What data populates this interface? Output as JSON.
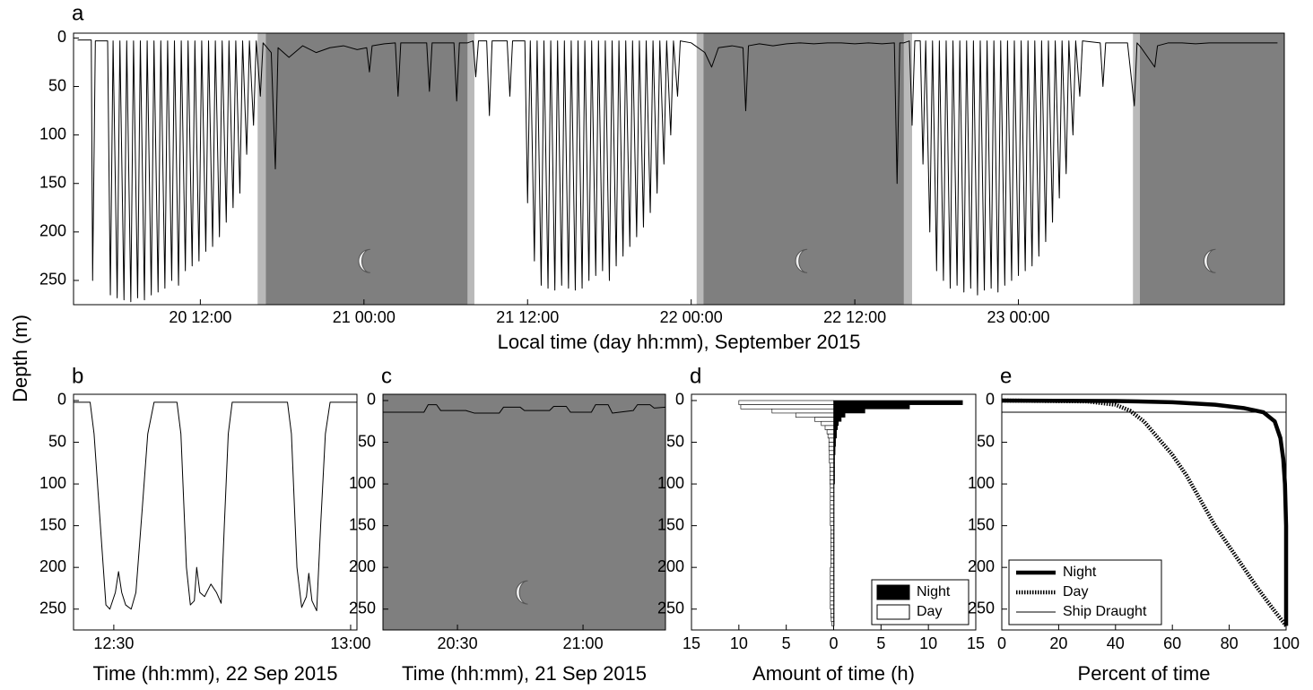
{
  "chart_data": [
    {
      "type": "line",
      "label": "a",
      "xlabel": "Local time (day hh:mm), September 2015",
      "ylabel": "Depth (m)",
      "color": "#000000",
      "xlim": [
        2.7,
        91.5
      ],
      "xticks": [
        {
          "value": 12,
          "label": "20 12:00"
        },
        {
          "value": 24,
          "label": "21 00:00"
        },
        {
          "value": 36,
          "label": "21 12:00"
        },
        {
          "value": 48,
          "label": "22 00:00"
        },
        {
          "value": 60,
          "label": "22 12:00"
        },
        {
          "value": 72,
          "label": "23 00:00"
        }
      ],
      "ylim": [
        -5,
        275
      ],
      "y_inverted": true,
      "yticks": [
        0,
        50,
        100,
        150,
        200,
        250
      ],
      "night_periods": [
        [
          16.8,
          31.6
        ],
        [
          48.9,
          63.6
        ],
        [
          80.9,
          91.5
        ]
      ],
      "twilight_periods": [
        [
          16.2,
          16.8
        ],
        [
          31.6,
          32.1
        ],
        [
          48.4,
          48.9
        ],
        [
          63.6,
          64.2
        ],
        [
          80.4,
          80.9
        ]
      ],
      "x": [
        3.0,
        4.0,
        4.1,
        4.3,
        5.2,
        5.4,
        5.6,
        5.9,
        6.1,
        6.4,
        6.6,
        6.9,
        7.1,
        7.4,
        7.6,
        7.9,
        8.1,
        8.4,
        8.6,
        8.9,
        9.1,
        9.4,
        9.6,
        9.9,
        10.1,
        10.4,
        10.6,
        10.9,
        11.1,
        11.4,
        11.6,
        11.9,
        12.1,
        12.4,
        12.6,
        12.9,
        13.1,
        13.4,
        13.6,
        13.9,
        14.1,
        14.4,
        14.6,
        14.9,
        15.1,
        15.4,
        15.6,
        15.9,
        16.1,
        16.4,
        16.6,
        17.2,
        17.5,
        17.7,
        18.5,
        19.5,
        20.5,
        21.5,
        22.5,
        23.5,
        24.2,
        24.4,
        24.6,
        25.5,
        26.3,
        26.5,
        26.7,
        27.5,
        28.6,
        28.8,
        29.0,
        30.0,
        30.6,
        30.8,
        31.0,
        31.6,
        32.0,
        32.2,
        32.4,
        33.0,
        33.2,
        33.4,
        34.5,
        34.7,
        34.9,
        35.8,
        36.0,
        36.2,
        36.5,
        36.7,
        37.0,
        37.2,
        37.5,
        37.7,
        38.0,
        38.2,
        38.5,
        38.7,
        39.0,
        39.2,
        39.5,
        39.7,
        40.0,
        40.2,
        40.5,
        40.7,
        41.0,
        41.2,
        41.5,
        41.7,
        42.0,
        42.2,
        42.5,
        42.7,
        43.0,
        43.2,
        43.5,
        43.7,
        44.0,
        44.2,
        44.5,
        44.7,
        45.0,
        45.2,
        45.5,
        45.7,
        46.0,
        46.2,
        46.5,
        46.7,
        47.0,
        47.2,
        48.0,
        49.0,
        49.5,
        50.0,
        51.0,
        51.8,
        52.0,
        52.2,
        53.0,
        54.0,
        55.0,
        56.0,
        57.0,
        58.0,
        59.0,
        60.0,
        61.0,
        62.0,
        62.9,
        63.1,
        63.3,
        63.6,
        64.0,
        64.2,
        64.4,
        64.8,
        65.0,
        65.2,
        65.5,
        65.7,
        66.0,
        66.2,
        66.5,
        66.7,
        67.0,
        67.2,
        67.5,
        67.7,
        68.0,
        68.2,
        68.5,
        68.7,
        69.0,
        69.2,
        69.5,
        69.7,
        70.0,
        70.2,
        70.5,
        70.7,
        71.0,
        71.2,
        71.5,
        71.7,
        72.0,
        72.2,
        72.5,
        72.7,
        73.0,
        73.2,
        73.5,
        73.7,
        74.0,
        74.2,
        74.5,
        74.7,
        75.0,
        75.2,
        75.5,
        75.7,
        76.0,
        76.2,
        76.5,
        76.7,
        78.0,
        78.2,
        78.4,
        80.0,
        80.5,
        80.7,
        81,
        82,
        82.2,
        83,
        84,
        85,
        86,
        87,
        88,
        89,
        90,
        91
      ],
      "values": [
        2,
        2,
        250,
        3,
        3,
        265,
        3,
        268,
        3,
        270,
        3,
        272,
        3,
        268,
        3,
        270,
        3,
        265,
        3,
        262,
        3,
        258,
        3,
        250,
        3,
        255,
        3,
        240,
        3,
        235,
        3,
        230,
        3,
        220,
        3,
        215,
        3,
        205,
        3,
        190,
        3,
        175,
        3,
        160,
        3,
        120,
        3,
        90,
        3,
        60,
        5,
        15,
        135,
        10,
        20,
        8,
        15,
        10,
        8,
        12,
        10,
        35,
        8,
        6,
        5,
        60,
        5,
        5,
        5,
        55,
        5,
        5,
        5,
        65,
        5,
        5,
        3,
        40,
        3,
        3,
        80,
        3,
        3,
        60,
        3,
        3,
        170,
        3,
        230,
        3,
        255,
        3,
        258,
        3,
        260,
        3,
        255,
        3,
        258,
        3,
        260,
        3,
        258,
        3,
        250,
        3,
        245,
        3,
        240,
        3,
        250,
        3,
        235,
        3,
        225,
        3,
        215,
        3,
        205,
        3,
        195,
        3,
        180,
        3,
        160,
        3,
        130,
        3,
        100,
        3,
        60,
        3,
        5,
        15,
        30,
        10,
        8,
        10,
        75,
        8,
        6,
        8,
        6,
        5,
        6,
        5,
        5,
        6,
        5,
        6,
        5,
        150,
        5,
        5,
        3,
        90,
        3,
        3,
        130,
        3,
        200,
        3,
        240,
        3,
        250,
        3,
        258,
        3,
        255,
        3,
        262,
        3,
        258,
        3,
        265,
        3,
        260,
        3,
        258,
        3,
        262,
        3,
        255,
        3,
        250,
        3,
        245,
        3,
        240,
        3,
        235,
        3,
        225,
        3,
        210,
        3,
        190,
        3,
        165,
        3,
        140,
        3,
        100,
        3,
        60,
        3,
        5,
        50,
        5,
        5,
        70,
        5,
        10,
        30,
        8,
        5,
        5,
        6,
        5,
        5,
        5,
        5,
        5,
        5
      ]
    },
    {
      "type": "line",
      "label": "b",
      "xlabel": "Time (hh:mm), 22 Sep 2015",
      "color": "#000000",
      "xlim": [
        24.9,
        60.8
      ],
      "xticks": [
        {
          "value": 30,
          "label": "12:30"
        },
        {
          "value": 60,
          "label": "13:00"
        }
      ],
      "ylim": [
        -7.5,
        275
      ],
      "y_inverted": true,
      "yticks": [
        0,
        50,
        100,
        150,
        200,
        250
      ],
      "x": [
        24.9,
        27.0,
        27.5,
        28.3,
        29.0,
        29.5,
        30.2,
        30.6,
        31.0,
        31.5,
        32.2,
        32.8,
        33.6,
        34.3,
        35.1,
        38.0,
        38.5,
        39.2,
        39.7,
        40.2,
        40.5,
        40.9,
        41.5,
        42.3,
        43.0,
        43.6,
        44.0,
        44.5,
        45.0,
        52.0,
        52.5,
        53.2,
        53.8,
        54.4,
        54.7,
        55.1,
        55.7,
        56.2,
        56.8,
        57.4,
        60.8
      ],
      "values": [
        2,
        2,
        40,
        150,
        245,
        250,
        230,
        205,
        230,
        245,
        250,
        230,
        130,
        40,
        2,
        2,
        40,
        200,
        245,
        240,
        200,
        230,
        235,
        220,
        230,
        243,
        150,
        40,
        2,
        2,
        40,
        200,
        248,
        235,
        207,
        240,
        252,
        150,
        40,
        2,
        2
      ]
    },
    {
      "type": "line",
      "label": "c",
      "xlabel": "Time (hh:mm), 21 Sep 2015",
      "color": "#000000",
      "xlim": [
        12.2,
        79.7
      ],
      "xticks": [
        {
          "value": 30,
          "label": "20:30"
        },
        {
          "value": 60,
          "label": "21:00"
        }
      ],
      "ylim": [
        -7.5,
        275
      ],
      "y_inverted": true,
      "yticks": [
        0,
        50,
        100,
        150,
        200,
        250
      ],
      "night_periods": [
        [
          12.2,
          79.7
        ]
      ],
      "x": [
        12.2,
        22,
        23,
        25,
        26,
        32,
        34,
        40,
        41,
        45,
        46,
        52,
        53,
        56,
        57,
        62,
        63,
        66,
        67,
        72,
        73,
        76,
        77,
        79.7
      ],
      "values": [
        14,
        14,
        5,
        5,
        12,
        12,
        15,
        15,
        8,
        8,
        12,
        12,
        7,
        7,
        14,
        14,
        5,
        5,
        15,
        12,
        5,
        5,
        9,
        8
      ]
    },
    {
      "type": "histogram",
      "label": "d",
      "xlabel": "Amount of time (h)",
      "orientation": "horizontal",
      "legend": "lower right",
      "xlim": [
        -15,
        15
      ],
      "xticks": [
        {
          "value": -15,
          "label": "15"
        },
        {
          "value": -10,
          "label": "10"
        },
        {
          "value": -5,
          "label": "5"
        },
        0,
        5,
        10,
        15
      ],
      "ylim": [
        -7.5,
        275
      ],
      "y_inverted": true,
      "yticks": [
        0,
        50,
        100,
        150,
        200,
        250
      ],
      "bins": [
        0,
        5,
        10,
        15,
        20,
        25,
        30,
        35,
        40,
        45,
        50,
        55,
        60,
        65,
        70,
        75,
        80,
        85,
        90,
        95,
        100,
        105,
        110,
        115,
        120,
        125,
        130,
        135,
        140,
        145,
        150,
        155,
        160,
        165,
        170,
        175,
        180,
        185,
        190,
        195,
        200,
        205,
        210,
        215,
        220,
        225,
        230,
        235,
        240,
        245,
        250,
        255,
        260,
        265,
        270
      ],
      "series": [
        {
          "name": "Night",
          "color": "#000000",
          "side": "right",
          "values": [
            13.6,
            8,
            3.3,
            1.2,
            0.8,
            0.5,
            0.4,
            0.3,
            0.3,
            0.2,
            0.2,
            0.15,
            0.15,
            0.1,
            0.1,
            0.1,
            0.1,
            0.1,
            0.1,
            0.1,
            0.05,
            0.05,
            0.05,
            0.05,
            0.05,
            0.05,
            0.05,
            0.05,
            0.05,
            0.05,
            0.05,
            0.05,
            0.05,
            0.05,
            0.05,
            0.05,
            0.05,
            0.05,
            0.05,
            0.05,
            0.05,
            0.05,
            0.05,
            0.05,
            0.05,
            0.05,
            0.05,
            0.05,
            0.05,
            0.05,
            0.05,
            0.05,
            0.05,
            0.05
          ]
        },
        {
          "name": "Day",
          "color": "#ffffff",
          "side": "left",
          "values": [
            10,
            9.8,
            6.5,
            4,
            2,
            1.3,
            0.9,
            0.7,
            0.6,
            0.5,
            0.5,
            0.5,
            0.45,
            0.45,
            0.45,
            0.4,
            0.4,
            0.4,
            0.4,
            0.4,
            0.35,
            0.35,
            0.35,
            0.35,
            0.35,
            0.35,
            0.35,
            0.35,
            0.35,
            0.35,
            0.3,
            0.3,
            0.3,
            0.3,
            0.3,
            0.3,
            0.3,
            0.3,
            0.3,
            0.3,
            0.35,
            0.35,
            0.35,
            0.35,
            0.35,
            0.35,
            0.35,
            0.35,
            0.35,
            0.35,
            0.3,
            0.3,
            0.25,
            0.2
          ]
        }
      ]
    },
    {
      "type": "line",
      "label": "e",
      "xlabel": "Percent of time",
      "legend": "lower left",
      "xlim": [
        0,
        100
      ],
      "xticks": [
        0,
        20,
        40,
        60,
        80,
        100
      ],
      "ylim": [
        -7.5,
        275
      ],
      "y_inverted": true,
      "yticks": [
        0,
        50,
        100,
        150,
        200,
        250
      ],
      "series": [
        {
          "name": "Night",
          "color": "#000000",
          "linestyle": "thick",
          "x": [
            0,
            40,
            60,
            75,
            85,
            92,
            96,
            98,
            99,
            99.6,
            100,
            100
          ],
          "values": [
            0,
            0.5,
            2,
            5,
            9,
            14,
            25,
            45,
            70,
            100,
            150,
            270
          ]
        },
        {
          "name": "Day",
          "color": "#000000",
          "linestyle": "dotted",
          "x": [
            0,
            30,
            40,
            45,
            50,
            55,
            60,
            65,
            70,
            75,
            80,
            85,
            90,
            95,
            100
          ],
          "values": [
            0,
            1,
            5,
            12,
            25,
            45,
            65,
            90,
            120,
            150,
            175,
            200,
            225,
            248,
            270
          ]
        },
        {
          "name": "Ship Draught",
          "color": "#000000",
          "linestyle": "thin",
          "x": [
            0,
            100
          ],
          "values": [
            14,
            14
          ]
        }
      ]
    }
  ]
}
